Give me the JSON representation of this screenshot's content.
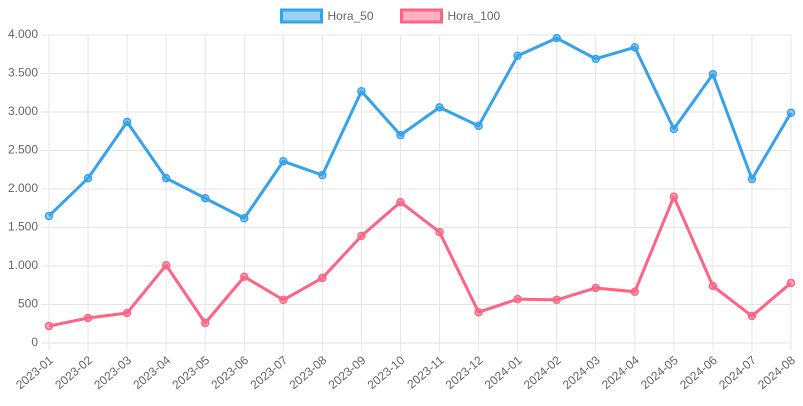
{
  "chart_data": {
    "type": "line",
    "categories": [
      "2023-01",
      "2023-02",
      "2023-03",
      "2023-04",
      "2023-05",
      "2023-06",
      "2023-07",
      "2023-08",
      "2023-09",
      "2023-10",
      "2023-11",
      "2023-12",
      "2024-01",
      "2024-02",
      "2024-03",
      "2024-04",
      "2024-05",
      "2024-06",
      "2024-07",
      "2024-08"
    ],
    "series": [
      {
        "name": "Hora_50",
        "color": "#36a2eb",
        "values": [
          1650,
          2140,
          2870,
          2140,
          1880,
          1620,
          2360,
          2180,
          3270,
          2700,
          3060,
          2820,
          3730,
          3960,
          3690,
          3840,
          2780,
          3490,
          2130,
          2990
        ]
      },
      {
        "name": "Hora_100",
        "color": "#ff6384",
        "values": [
          220,
          325,
          390,
          1010,
          260,
          860,
          560,
          845,
          1390,
          1830,
          1440,
          400,
          570,
          560,
          715,
          665,
          1900,
          740,
          350,
          780
        ]
      }
    ],
    "ylim": [
      0,
      4000
    ],
    "yticks": [
      0,
      500,
      {
        "value": 1000,
        "label": "1.000"
      },
      {
        "value": 1500,
        "label": "1.500"
      },
      {
        "value": 2000,
        "label": "2.000"
      },
      {
        "value": 2500,
        "label": "2.500"
      },
      {
        "value": 3000,
        "label": "3.000"
      },
      {
        "value": 3500,
        "label": "3.500"
      },
      {
        "value": 4000,
        "label": "4.000"
      }
    ],
    "grid": true,
    "legend": "top"
  }
}
